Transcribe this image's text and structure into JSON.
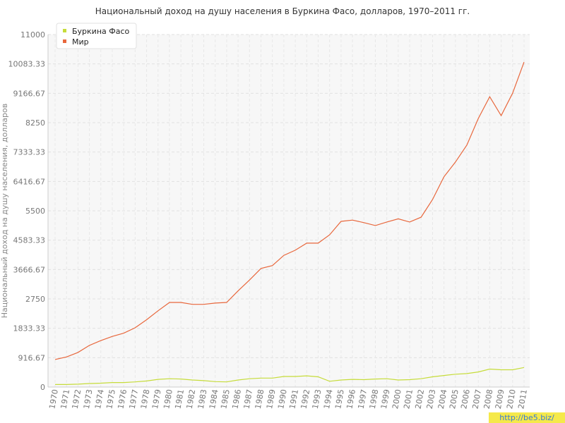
{
  "chart_data": {
    "type": "line",
    "title": "Национальный доход на душу населения в Буркина Фасо, долларов, 1970–2011 гг.",
    "y_label": "Национальный доход на душу населения, долларов",
    "watermark": "http://be5.biz/",
    "categories": [
      "1970",
      "1971",
      "1972",
      "1973",
      "1974",
      "1975",
      "1976",
      "1977",
      "1978",
      "1979",
      "1980",
      "1981",
      "1982",
      "1983",
      "1984",
      "1985",
      "1986",
      "1987",
      "1988",
      "1989",
      "1990",
      "1991",
      "1992",
      "1993",
      "1994",
      "1995",
      "1996",
      "1997",
      "1998",
      "1999",
      "2000",
      "2001",
      "2002",
      "2003",
      "2004",
      "2005",
      "2006",
      "2007",
      "2008",
      "2009",
      "2010",
      "2011"
    ],
    "series": [
      {
        "name": "Буркина Фасо",
        "color": "#c6dc3a",
        "values": [
          80,
          80,
          90,
          110,
          120,
          140,
          140,
          160,
          190,
          240,
          260,
          250,
          220,
          200,
          170,
          160,
          220,
          260,
          280,
          280,
          330,
          330,
          350,
          320,
          180,
          220,
          240,
          230,
          250,
          260,
          220,
          230,
          260,
          320,
          360,
          400,
          420,
          470,
          560,
          540,
          540,
          610
        ]
      },
      {
        "name": "Мир",
        "color": "#e8673c",
        "values": [
          860,
          940,
          1080,
          1300,
          1450,
          1580,
          1680,
          1850,
          2100,
          2380,
          2640,
          2640,
          2580,
          2580,
          2620,
          2640,
          3000,
          3340,
          3700,
          3790,
          4110,
          4270,
          4490,
          4490,
          4750,
          5170,
          5210,
          5130,
          5040,
          5150,
          5250,
          5150,
          5300,
          5850,
          6560,
          7020,
          7550,
          8380,
          9060,
          8470,
          9170,
          10140
        ]
      }
    ],
    "ylim": [
      0,
      11000
    ],
    "yticks": [
      0,
      916.67,
      1833.33,
      2750,
      3666.67,
      4583.33,
      5500,
      6416.67,
      7333.33,
      8250,
      9166.67,
      10083.33,
      11000
    ],
    "grid": true,
    "legend": "top-left"
  }
}
